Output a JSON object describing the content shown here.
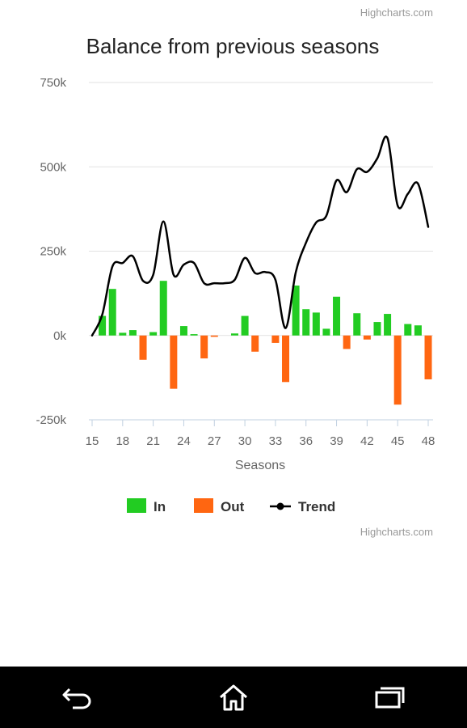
{
  "credits": "Highcharts.com",
  "chart_data": {
    "type": "bar",
    "title": "Balance from previous seasons",
    "xlabel": "Seasons",
    "ylabel": "",
    "ylim": [
      -250000,
      750000
    ],
    "yticks": [
      -250000,
      0,
      250000,
      500000,
      750000
    ],
    "ytick_labels": [
      "-250k",
      "0k",
      "250k",
      "500k",
      "750k"
    ],
    "xticks": [
      15,
      18,
      21,
      24,
      27,
      30,
      33,
      36,
      39,
      42,
      45,
      48
    ],
    "xtick_labels": [
      "15",
      "18",
      "21",
      "24",
      "27",
      "30",
      "33",
      "36",
      "39",
      "42",
      "45",
      "48"
    ],
    "grid": true,
    "legend_position": "bottom-center",
    "x": [
      15,
      16,
      17,
      18,
      19,
      20,
      21,
      22,
      23,
      24,
      25,
      26,
      27,
      28,
      29,
      30,
      31,
      32,
      33,
      34,
      35,
      36,
      37,
      38,
      39,
      40,
      41,
      42,
      43,
      44,
      45,
      46,
      47,
      48
    ],
    "series": [
      {
        "name": "In",
        "type": "column",
        "color": "#22cc22",
        "values": [
          0,
          58000,
          138000,
          8000,
          16000,
          0,
          10000,
          162000,
          0,
          28000,
          4000,
          0,
          0,
          0,
          6000,
          58000,
          0,
          0,
          0,
          0,
          148000,
          78000,
          68000,
          20000,
          115000,
          0,
          66000,
          0,
          40000,
          64000,
          0,
          34000,
          30000,
          0
        ]
      },
      {
        "name": "Out",
        "type": "column",
        "color": "#ff6611",
        "values": [
          0,
          0,
          0,
          0,
          0,
          -72000,
          0,
          0,
          -158000,
          0,
          0,
          -68000,
          -4000,
          0,
          0,
          0,
          -48000,
          0,
          -22000,
          -138000,
          0,
          0,
          0,
          0,
          0,
          -40000,
          0,
          -12000,
          0,
          0,
          -205000,
          0,
          0,
          -130000
        ]
      },
      {
        "name": "Trend",
        "type": "spline",
        "color": "#000000",
        "values": [
          0,
          62000,
          205000,
          215000,
          235000,
          162000,
          180000,
          338000,
          180000,
          210000,
          215000,
          155000,
          155000,
          155000,
          165000,
          230000,
          185000,
          188000,
          165000,
          22000,
          188000,
          275000,
          335000,
          355000,
          460000,
          425000,
          493000,
          485000,
          525000,
          585000,
          385000,
          420000,
          450000,
          322000
        ]
      }
    ]
  }
}
